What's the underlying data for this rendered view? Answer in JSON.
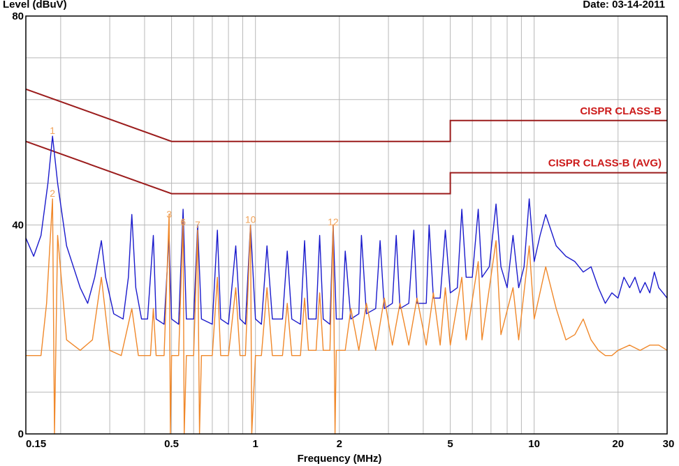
{
  "header": {
    "ylabel": "Level (dBuV)",
    "date": "Date: 03-14-2011"
  },
  "chart_data": {
    "type": "line",
    "title": "",
    "xlabel": "Frequency (MHz)",
    "ylabel": "Level (dBuV)",
    "x_scale": "log",
    "xlim": [
      0.15,
      30
    ],
    "ylim": [
      0,
      80
    ],
    "grid": true,
    "x_ticks": [
      {
        "value": 0.15,
        "label": "0.15"
      },
      {
        "value": 0.5,
        "label": "0.5"
      },
      {
        "value": 1,
        "label": "1"
      },
      {
        "value": 2,
        "label": "2"
      },
      {
        "value": 5,
        "label": "5"
      },
      {
        "value": 10,
        "label": "10"
      },
      {
        "value": 20,
        "label": "20"
      },
      {
        "value": 30,
        "label": "30"
      }
    ],
    "y_ticks": [
      {
        "value": 0,
        "label": "0"
      },
      {
        "value": 40,
        "label": "40"
      },
      {
        "value": 80,
        "label": "80"
      }
    ],
    "limits": [
      {
        "name": "CISPR CLASS-B",
        "color": "#9b1c1c",
        "label_color": "#cc1a1a",
        "points": [
          [
            0.15,
            66
          ],
          [
            0.5,
            56
          ],
          [
            5,
            56
          ],
          [
            5,
            60
          ],
          [
            30,
            60
          ]
        ]
      },
      {
        "name": "CISPR CLASS-B (AVG)",
        "color": "#9b1c1c",
        "label_color": "#cc1a1a",
        "points": [
          [
            0.15,
            56
          ],
          [
            0.5,
            46
          ],
          [
            5,
            46
          ],
          [
            5,
            50
          ],
          [
            30,
            50
          ]
        ]
      }
    ],
    "series": [
      {
        "color": "#1a1acc",
        "points": [
          [
            0.15,
            37.5
          ],
          [
            0.16,
            34
          ],
          [
            0.17,
            38
          ],
          [
            0.18,
            48
          ],
          [
            0.187,
            57
          ],
          [
            0.195,
            48
          ],
          [
            0.21,
            36
          ],
          [
            0.235,
            28
          ],
          [
            0.25,
            25
          ],
          [
            0.265,
            30
          ],
          [
            0.28,
            37
          ],
          [
            0.29,
            30
          ],
          [
            0.31,
            23
          ],
          [
            0.335,
            22
          ],
          [
            0.35,
            30
          ],
          [
            0.36,
            42
          ],
          [
            0.372,
            28
          ],
          [
            0.39,
            22
          ],
          [
            0.41,
            22
          ],
          [
            0.43,
            38
          ],
          [
            0.44,
            22
          ],
          [
            0.47,
            21
          ],
          [
            0.49,
            38
          ],
          [
            0.5,
            22
          ],
          [
            0.53,
            21
          ],
          [
            0.55,
            43
          ],
          [
            0.565,
            22
          ],
          [
            0.6,
            22
          ],
          [
            0.62,
            40
          ],
          [
            0.64,
            22
          ],
          [
            0.7,
            21
          ],
          [
            0.73,
            39
          ],
          [
            0.75,
            22
          ],
          [
            0.8,
            21
          ],
          [
            0.85,
            36
          ],
          [
            0.88,
            22
          ],
          [
            0.92,
            21
          ],
          [
            0.96,
            40
          ],
          [
            1.0,
            22
          ],
          [
            1.05,
            21
          ],
          [
            1.1,
            36
          ],
          [
            1.15,
            22
          ],
          [
            1.25,
            22
          ],
          [
            1.3,
            35
          ],
          [
            1.35,
            22
          ],
          [
            1.45,
            21
          ],
          [
            1.5,
            37
          ],
          [
            1.55,
            22
          ],
          [
            1.65,
            22
          ],
          [
            1.7,
            38
          ],
          [
            1.75,
            22
          ],
          [
            1.85,
            21
          ],
          [
            1.9,
            40
          ],
          [
            1.95,
            22
          ],
          [
            2.05,
            22
          ],
          [
            2.1,
            35
          ],
          [
            2.2,
            22
          ],
          [
            2.35,
            23
          ],
          [
            2.4,
            38
          ],
          [
            2.5,
            23
          ],
          [
            2.7,
            24
          ],
          [
            2.8,
            37
          ],
          [
            2.9,
            24
          ],
          [
            3.1,
            25
          ],
          [
            3.2,
            38
          ],
          [
            3.3,
            24
          ],
          [
            3.55,
            25
          ],
          [
            3.7,
            39
          ],
          [
            3.8,
            25
          ],
          [
            4.1,
            25
          ],
          [
            4.2,
            40
          ],
          [
            4.35,
            26
          ],
          [
            4.6,
            26
          ],
          [
            4.8,
            39
          ],
          [
            5.0,
            27
          ],
          [
            5.3,
            28
          ],
          [
            5.5,
            43
          ],
          [
            5.7,
            30
          ],
          [
            6.0,
            30
          ],
          [
            6.3,
            43
          ],
          [
            6.5,
            30
          ],
          [
            6.9,
            32
          ],
          [
            7.3,
            44
          ],
          [
            7.6,
            32
          ],
          [
            8.0,
            28
          ],
          [
            8.4,
            38
          ],
          [
            8.8,
            28
          ],
          [
            9.2,
            32
          ],
          [
            9.6,
            45
          ],
          [
            10,
            33
          ],
          [
            10.5,
            38
          ],
          [
            11,
            42
          ],
          [
            12,
            36
          ],
          [
            13,
            34
          ],
          [
            14,
            33
          ],
          [
            15,
            31
          ],
          [
            16,
            32
          ],
          [
            17,
            28
          ],
          [
            18,
            25
          ],
          [
            19,
            27
          ],
          [
            20,
            26
          ],
          [
            21,
            30
          ],
          [
            22,
            28
          ],
          [
            23,
            30
          ],
          [
            24,
            27
          ],
          [
            25,
            29
          ],
          [
            26,
            27
          ],
          [
            27,
            31
          ],
          [
            28,
            28
          ],
          [
            29,
            27
          ],
          [
            30,
            26
          ]
        ]
      },
      {
        "color": "#f0882a",
        "points": [
          [
            0.15,
            15
          ],
          [
            0.17,
            15
          ],
          [
            0.178,
            25
          ],
          [
            0.187,
            45
          ],
          [
            0.19,
            0
          ],
          [
            0.195,
            38
          ],
          [
            0.21,
            18
          ],
          [
            0.235,
            16
          ],
          [
            0.26,
            18
          ],
          [
            0.28,
            30
          ],
          [
            0.3,
            16
          ],
          [
            0.33,
            15
          ],
          [
            0.36,
            24
          ],
          [
            0.38,
            15
          ],
          [
            0.42,
            15
          ],
          [
            0.43,
            24
          ],
          [
            0.44,
            15
          ],
          [
            0.47,
            15
          ],
          [
            0.49,
            42
          ],
          [
            0.495,
            0
          ],
          [
            0.5,
            15
          ],
          [
            0.53,
            15
          ],
          [
            0.55,
            41
          ],
          [
            0.555,
            0
          ],
          [
            0.565,
            15
          ],
          [
            0.6,
            15
          ],
          [
            0.62,
            39
          ],
          [
            0.63,
            0
          ],
          [
            0.64,
            15
          ],
          [
            0.7,
            15
          ],
          [
            0.73,
            30
          ],
          [
            0.75,
            15
          ],
          [
            0.8,
            15
          ],
          [
            0.85,
            28
          ],
          [
            0.88,
            15
          ],
          [
            0.92,
            15
          ],
          [
            0.96,
            40
          ],
          [
            0.97,
            0
          ],
          [
            1.0,
            15
          ],
          [
            1.05,
            15
          ],
          [
            1.1,
            28
          ],
          [
            1.15,
            15
          ],
          [
            1.25,
            15
          ],
          [
            1.3,
            25
          ],
          [
            1.35,
            15
          ],
          [
            1.45,
            15
          ],
          [
            1.5,
            26
          ],
          [
            1.55,
            16
          ],
          [
            1.65,
            16
          ],
          [
            1.7,
            27
          ],
          [
            1.75,
            16
          ],
          [
            1.85,
            16
          ],
          [
            1.9,
            40
          ],
          [
            1.93,
            0
          ],
          [
            1.95,
            16
          ],
          [
            2.1,
            16
          ],
          [
            2.2,
            24
          ],
          [
            2.35,
            16
          ],
          [
            2.5,
            25
          ],
          [
            2.7,
            16
          ],
          [
            2.9,
            26
          ],
          [
            3.1,
            17
          ],
          [
            3.3,
            25
          ],
          [
            3.55,
            17
          ],
          [
            3.8,
            26
          ],
          [
            4.1,
            17
          ],
          [
            4.35,
            27
          ],
          [
            4.6,
            17
          ],
          [
            4.8,
            28
          ],
          [
            5.0,
            17
          ],
          [
            5.5,
            30
          ],
          [
            5.7,
            18
          ],
          [
            6.3,
            33
          ],
          [
            6.5,
            18
          ],
          [
            7.3,
            37
          ],
          [
            7.6,
            19
          ],
          [
            8.4,
            28
          ],
          [
            8.8,
            18
          ],
          [
            9.6,
            36
          ],
          [
            10,
            22
          ],
          [
            11,
            32
          ],
          [
            12,
            24
          ],
          [
            13,
            18
          ],
          [
            14,
            19
          ],
          [
            15,
            22
          ],
          [
            16,
            18
          ],
          [
            17,
            16
          ],
          [
            18,
            15
          ],
          [
            19,
            15
          ],
          [
            20,
            16
          ],
          [
            22,
            17
          ],
          [
            24,
            16
          ],
          [
            26,
            17
          ],
          [
            28,
            17
          ],
          [
            30,
            16
          ]
        ]
      }
    ],
    "markers": [
      {
        "label": "1",
        "x": 0.187,
        "y": 57
      },
      {
        "label": "2",
        "x": 0.187,
        "y": 45
      },
      {
        "label": "3",
        "x": 0.49,
        "y": 41
      },
      {
        "label": "6",
        "x": 0.55,
        "y": 39.5
      },
      {
        "label": "7",
        "x": 0.62,
        "y": 39
      },
      {
        "label": "10",
        "x": 0.96,
        "y": 40
      },
      {
        "label": "12",
        "x": 1.9,
        "y": 39.5
      }
    ]
  }
}
